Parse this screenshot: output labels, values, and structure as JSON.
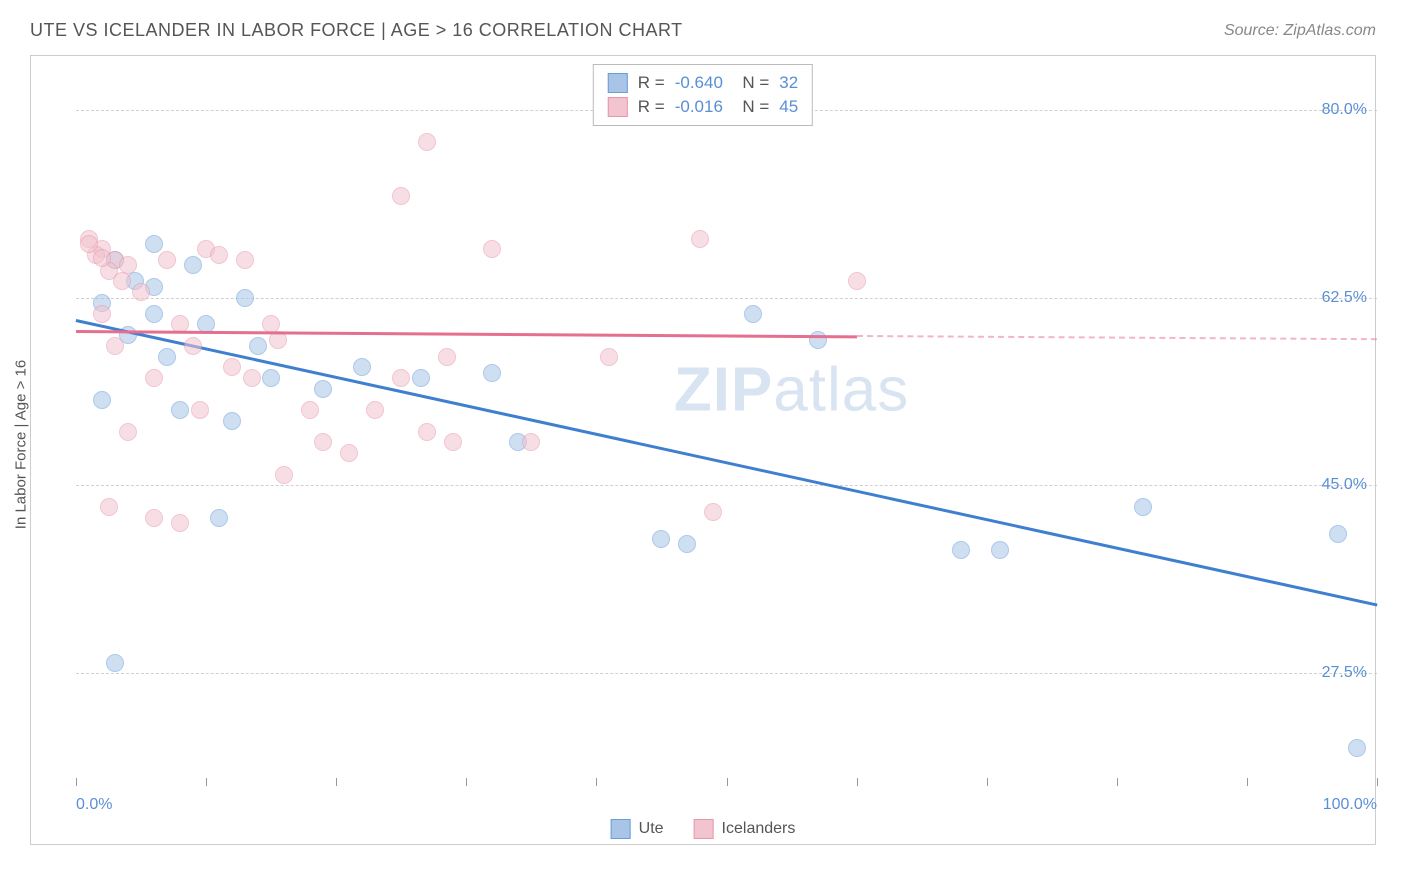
{
  "title": "UTE VS ICELANDER IN LABOR FORCE | AGE > 16 CORRELATION CHART",
  "source": "Source: ZipAtlas.com",
  "watermark_bold": "ZIP",
  "watermark_thin": "atlas",
  "ylabel": "In Labor Force | Age > 16",
  "chart": {
    "type": "scatter",
    "background_color": "#ffffff",
    "grid_color": "#d0d0d0",
    "border_color": "#cccccc",
    "xlim": [
      0,
      100
    ],
    "ylim": [
      17,
      85
    ],
    "x_ticks": [
      0,
      10,
      20,
      30,
      40,
      50,
      60,
      70,
      80,
      90,
      100
    ],
    "x_tick_labels": {
      "0": "0.0%",
      "100": "100.0%"
    },
    "y_gridlines": [
      27.5,
      45.0,
      62.5,
      80.0
    ],
    "y_tick_labels": [
      "27.5%",
      "45.0%",
      "62.5%",
      "80.0%"
    ],
    "axis_label_color": "#5a8fd6",
    "point_radius": 9,
    "point_opacity": 0.55,
    "series": [
      {
        "name": "Ute",
        "fill_color": "#a8c5e8",
        "stroke_color": "#6a9dd8",
        "trend_color": "#3f7fd0",
        "trend_width": 2.5,
        "r_value": "-0.640",
        "n_value": "32",
        "trend_start": {
          "x": 0,
          "y": 60.5
        },
        "trend_end": {
          "x": 100,
          "y": 34
        },
        "dashed_extension": false,
        "points": [
          {
            "x": 6,
            "y": 67.5
          },
          {
            "x": 3,
            "y": 66
          },
          {
            "x": 9,
            "y": 65.5
          },
          {
            "x": 2,
            "y": 62
          },
          {
            "x": 6,
            "y": 63.5
          },
          {
            "x": 13,
            "y": 62.5
          },
          {
            "x": 52,
            "y": 61
          },
          {
            "x": 7,
            "y": 57
          },
          {
            "x": 15,
            "y": 55
          },
          {
            "x": 57,
            "y": 58.5
          },
          {
            "x": 2,
            "y": 53
          },
          {
            "x": 8,
            "y": 52
          },
          {
            "x": 12,
            "y": 51
          },
          {
            "x": 26.5,
            "y": 55
          },
          {
            "x": 11,
            "y": 42
          },
          {
            "x": 45,
            "y": 40
          },
          {
            "x": 47,
            "y": 39.5
          },
          {
            "x": 68,
            "y": 39
          },
          {
            "x": 71,
            "y": 39
          },
          {
            "x": 82,
            "y": 43
          },
          {
            "x": 97,
            "y": 40.5
          },
          {
            "x": 3,
            "y": 28.5
          },
          {
            "x": 98.5,
            "y": 20.5
          },
          {
            "x": 34,
            "y": 49
          },
          {
            "x": 22,
            "y": 56
          },
          {
            "x": 19,
            "y": 54
          },
          {
            "x": 4,
            "y": 59
          },
          {
            "x": 10,
            "y": 60
          },
          {
            "x": 32,
            "y": 55.5
          },
          {
            "x": 4.5,
            "y": 64
          },
          {
            "x": 14,
            "y": 58
          },
          {
            "x": 6,
            "y": 61
          }
        ]
      },
      {
        "name": "Icelanders",
        "fill_color": "#f2c4cf",
        "stroke_color": "#e897ab",
        "trend_color": "#e56f8f",
        "trend_width": 2.5,
        "r_value": "-0.016",
        "n_value": "45",
        "trend_start": {
          "x": 0,
          "y": 59.5
        },
        "trend_end": {
          "x": 60,
          "y": 59
        },
        "dashed_extension": true,
        "dashed_end": {
          "x": 100,
          "y": 58.7
        },
        "points": [
          {
            "x": 1,
            "y": 68
          },
          {
            "x": 2,
            "y": 67
          },
          {
            "x": 1.5,
            "y": 66.5
          },
          {
            "x": 3,
            "y": 66
          },
          {
            "x": 2.5,
            "y": 65
          },
          {
            "x": 4,
            "y": 65.5
          },
          {
            "x": 3.5,
            "y": 64
          },
          {
            "x": 10,
            "y": 67
          },
          {
            "x": 7,
            "y": 66
          },
          {
            "x": 11,
            "y": 66.5
          },
          {
            "x": 13,
            "y": 66
          },
          {
            "x": 5,
            "y": 63
          },
          {
            "x": 2,
            "y": 61
          },
          {
            "x": 8,
            "y": 60
          },
          {
            "x": 9,
            "y": 58
          },
          {
            "x": 3,
            "y": 58
          },
          {
            "x": 6,
            "y": 55
          },
          {
            "x": 9.5,
            "y": 52
          },
          {
            "x": 4,
            "y": 50
          },
          {
            "x": 2.5,
            "y": 43
          },
          {
            "x": 6,
            "y": 42
          },
          {
            "x": 8,
            "y": 41.5
          },
          {
            "x": 12,
            "y": 56
          },
          {
            "x": 13.5,
            "y": 55
          },
          {
            "x": 15,
            "y": 60
          },
          {
            "x": 15.5,
            "y": 58.5
          },
          {
            "x": 18,
            "y": 52
          },
          {
            "x": 19,
            "y": 49
          },
          {
            "x": 21,
            "y": 48
          },
          {
            "x": 16,
            "y": 46
          },
          {
            "x": 23,
            "y": 52
          },
          {
            "x": 25,
            "y": 72
          },
          {
            "x": 27,
            "y": 77
          },
          {
            "x": 28.5,
            "y": 57
          },
          {
            "x": 27,
            "y": 50
          },
          {
            "x": 32,
            "y": 67
          },
          {
            "x": 29,
            "y": 49
          },
          {
            "x": 35,
            "y": 49
          },
          {
            "x": 41,
            "y": 57
          },
          {
            "x": 48,
            "y": 68
          },
          {
            "x": 49,
            "y": 42.5
          },
          {
            "x": 60,
            "y": 64
          },
          {
            "x": 1,
            "y": 67.5
          },
          {
            "x": 2,
            "y": 66.2
          },
          {
            "x": 25,
            "y": 55
          }
        ]
      }
    ]
  },
  "bottom_legend": [
    {
      "label": "Ute",
      "fill": "#a8c5e8",
      "stroke": "#6a9dd8"
    },
    {
      "label": "Icelanders",
      "fill": "#f2c4cf",
      "stroke": "#e897ab"
    }
  ]
}
